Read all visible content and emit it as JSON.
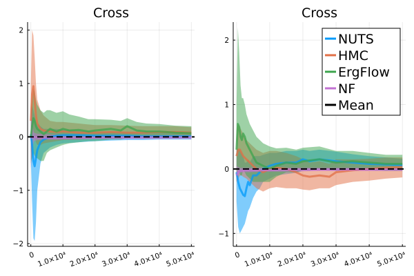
{
  "chart_data": [
    {
      "type": "line",
      "title": "Cross",
      "xlabel": "",
      "ylabel": "",
      "xlim": [
        -1000,
        51000
      ],
      "ylim": [
        -2.05,
        2.15
      ],
      "xticks": [
        {
          "value": 0,
          "label": "0"
        },
        {
          "value": 10000,
          "label": "1.0×10⁴"
        },
        {
          "value": 20000,
          "label": "2.0×10⁴"
        },
        {
          "value": 30000,
          "label": "3.0×10⁴"
        },
        {
          "value": 40000,
          "label": "4.0×10⁴"
        },
        {
          "value": 50000,
          "label": "5.0×10⁴"
        }
      ],
      "yticks": [
        {
          "value": -2,
          "label": "−2"
        },
        {
          "value": -1,
          "label": "−1"
        },
        {
          "value": 0,
          "label": "0"
        },
        {
          "value": 1,
          "label": "1"
        },
        {
          "value": 2,
          "label": "2"
        }
      ],
      "grid": true,
      "mean": 0,
      "series": [
        {
          "name": "NUTS",
          "color": "#009AFA",
          "x": [
            0,
            400,
            800,
            1200,
            1600,
            2000,
            3000,
            4000,
            6000,
            8000,
            10000,
            15000,
            20000,
            25000,
            30000,
            35000,
            40000,
            45000,
            50000
          ],
          "y": [
            0.05,
            -0.15,
            -0.45,
            -0.55,
            -0.4,
            -0.25,
            -0.1,
            -0.05,
            0.0,
            0.02,
            0.03,
            0.03,
            0.02,
            0.02,
            0.02,
            0.01,
            0.01,
            0.01,
            0.01
          ],
          "lower": [
            -0.4,
            -1.2,
            -1.9,
            -1.95,
            -1.6,
            -1.0,
            -0.5,
            -0.3,
            -0.2,
            -0.15,
            -0.12,
            -0.1,
            -0.08,
            -0.07,
            -0.06,
            -0.06,
            -0.05,
            -0.05,
            -0.05
          ],
          "upper": [
            0.4,
            0.6,
            0.5,
            0.4,
            0.3,
            0.25,
            0.2,
            0.15,
            0.15,
            0.15,
            0.14,
            0.12,
            0.1,
            0.1,
            0.09,
            0.08,
            0.08,
            0.08,
            0.07
          ]
        },
        {
          "name": "HMC",
          "color": "#E26F46",
          "x": [
            0,
            400,
            800,
            1200,
            1600,
            2000,
            3000,
            4000,
            6000,
            8000,
            10000,
            15000,
            20000,
            25000,
            30000,
            35000,
            40000,
            45000,
            50000
          ],
          "y": [
            0.3,
            0.8,
            0.95,
            0.7,
            0.4,
            0.25,
            0.15,
            0.12,
            0.1,
            0.09,
            0.1,
            0.08,
            0.08,
            0.09,
            0.08,
            0.08,
            0.09,
            0.09,
            0.08
          ],
          "lower": [
            -0.3,
            -0.2,
            0.1,
            0.0,
            -0.1,
            -0.15,
            -0.15,
            -0.12,
            -0.1,
            -0.08,
            -0.06,
            -0.05,
            -0.03,
            -0.02,
            -0.02,
            -0.01,
            -0.01,
            -0.01,
            0.0
          ],
          "upper": [
            1.0,
            2.0,
            1.9,
            1.5,
            1.0,
            0.7,
            0.5,
            0.4,
            0.3,
            0.28,
            0.28,
            0.25,
            0.22,
            0.22,
            0.21,
            0.2,
            0.2,
            0.2,
            0.18
          ]
        },
        {
          "name": "ErgFlow",
          "color": "#3DA44D",
          "x": [
            0,
            400,
            800,
            1200,
            1600,
            2000,
            3000,
            4000,
            5000,
            6000,
            8000,
            10000,
            12000,
            15000,
            18000,
            20000,
            25000,
            28000,
            30000,
            33000,
            36000,
            40000,
            45000,
            50000
          ],
          "y": [
            0.0,
            0.2,
            0.35,
            0.3,
            0.2,
            0.15,
            0.1,
            0.05,
            0.1,
            0.15,
            0.1,
            0.15,
            0.12,
            0.13,
            0.1,
            0.12,
            0.15,
            0.12,
            0.2,
            0.12,
            0.1,
            0.1,
            0.08,
            0.07
          ],
          "lower": [
            -0.5,
            -0.4,
            -0.3,
            -0.35,
            -0.4,
            -0.4,
            -0.45,
            -0.45,
            -0.3,
            -0.25,
            -0.2,
            -0.15,
            -0.12,
            -0.1,
            -0.08,
            -0.08,
            -0.05,
            -0.05,
            -0.02,
            -0.03,
            -0.03,
            -0.03,
            -0.02,
            -0.02
          ],
          "upper": [
            0.5,
            0.7,
            0.9,
            0.85,
            0.7,
            0.6,
            0.5,
            0.45,
            0.5,
            0.5,
            0.45,
            0.48,
            0.42,
            0.38,
            0.33,
            0.33,
            0.32,
            0.3,
            0.35,
            0.28,
            0.25,
            0.24,
            0.21,
            0.2
          ]
        },
        {
          "name": "NF",
          "color": "#C271D2",
          "x": [
            0,
            500,
            1000,
            2000,
            4000,
            8000,
            15000,
            25000,
            35000,
            50000
          ],
          "y": [
            0.0,
            -0.02,
            0.0,
            -0.01,
            -0.02,
            -0.02,
            -0.02,
            -0.01,
            -0.01,
            -0.01
          ],
          "lower": [
            -0.6,
            -0.2,
            -0.08,
            -0.06,
            -0.05,
            -0.05,
            -0.04,
            -0.04,
            -0.04,
            -0.04
          ],
          "upper": [
            0.6,
            0.2,
            0.08,
            0.06,
            0.05,
            0.04,
            0.03,
            0.03,
            0.03,
            0.03
          ]
        }
      ]
    },
    {
      "type": "line",
      "title": "Cross",
      "xlabel": "",
      "ylabel": "",
      "xlim": [
        -1000,
        51000
      ],
      "ylim": [
        -1.2,
        2.28
      ],
      "xticks": [
        {
          "value": 0,
          "label": "0"
        },
        {
          "value": 10000,
          "label": "1.0×10⁴"
        },
        {
          "value": 20000,
          "label": "2.0×10⁴"
        },
        {
          "value": 30000,
          "label": "3.0×10⁴"
        },
        {
          "value": 40000,
          "label": "4.0×10⁴"
        },
        {
          "value": 50000,
          "label": "5.0×10⁴"
        }
      ],
      "yticks": [
        {
          "value": -1,
          "label": "−1"
        },
        {
          "value": 0,
          "label": "0"
        },
        {
          "value": 1,
          "label": "1"
        },
        {
          "value": 2,
          "label": "2"
        }
      ],
      "grid": true,
      "mean": 0,
      "legend": {
        "placement": "top-right",
        "entries": [
          {
            "name": "NUTS",
            "color": "#009AFA"
          },
          {
            "name": "HMC",
            "color": "#E26F46"
          },
          {
            "name": "ErgFlow",
            "color": "#3DA44D"
          },
          {
            "name": "NF",
            "color": "#C271D2"
          },
          {
            "name": "Mean",
            "color": "#000000"
          }
        ]
      },
      "series": [
        {
          "name": "NUTS",
          "color": "#009AFA",
          "x": [
            0,
            500,
            1000,
            1500,
            2000,
            2500,
            3000,
            3500,
            4000,
            5000,
            6000,
            7000,
            8000,
            10000,
            12000,
            15000,
            18000,
            20000,
            22000,
            25000,
            30000,
            35000,
            40000,
            45000,
            50000
          ],
          "y": [
            -0.05,
            -0.2,
            -0.3,
            -0.35,
            -0.4,
            -0.42,
            -0.3,
            -0.2,
            -0.25,
            -0.1,
            -0.1,
            -0.05,
            0.0,
            0.05,
            0.08,
            0.1,
            0.1,
            0.15,
            0.12,
            0.15,
            0.12,
            0.1,
            0.08,
            0.07,
            0.06
          ],
          "lower": [
            -0.5,
            -0.9,
            -1.0,
            -0.95,
            -0.9,
            -0.85,
            -0.75,
            -0.65,
            -0.6,
            -0.45,
            -0.35,
            -0.3,
            -0.2,
            -0.15,
            -0.1,
            -0.08,
            -0.06,
            -0.03,
            -0.03,
            0.0,
            -0.02,
            -0.02,
            -0.02,
            -0.02,
            -0.02
          ],
          "upper": [
            0.3,
            0.3,
            0.3,
            0.25,
            0.2,
            0.1,
            0.1,
            0.15,
            0.1,
            0.2,
            0.2,
            0.2,
            0.22,
            0.25,
            0.25,
            0.28,
            0.28,
            0.3,
            0.28,
            0.3,
            0.27,
            0.23,
            0.2,
            0.18,
            0.16
          ]
        },
        {
          "name": "HMC",
          "color": "#E26F46",
          "x": [
            0,
            500,
            1000,
            1500,
            2000,
            3000,
            4000,
            5000,
            6000,
            8000,
            10000,
            12000,
            15000,
            18000,
            20000,
            22000,
            25000,
            28000,
            30000,
            35000,
            40000,
            45000,
            50000
          ],
          "y": [
            0.2,
            0.3,
            0.3,
            0.25,
            0.2,
            0.15,
            0.1,
            0.05,
            0.0,
            -0.05,
            0.0,
            0.02,
            0.0,
            -0.05,
            -0.1,
            -0.12,
            -0.1,
            -0.12,
            -0.05,
            -0.02,
            0.0,
            0.02,
            0.03
          ],
          "lower": [
            -0.2,
            -0.15,
            -0.1,
            -0.1,
            -0.12,
            -0.15,
            -0.2,
            -0.25,
            -0.3,
            -0.35,
            -0.3,
            -0.28,
            -0.3,
            -0.3,
            -0.32,
            -0.33,
            -0.3,
            -0.3,
            -0.25,
            -0.2,
            -0.18,
            -0.15,
            -0.13
          ],
          "upper": [
            0.6,
            0.7,
            0.65,
            0.6,
            0.55,
            0.45,
            0.4,
            0.35,
            0.3,
            0.25,
            0.28,
            0.28,
            0.25,
            0.2,
            0.15,
            0.1,
            0.12,
            0.08,
            0.15,
            0.15,
            0.16,
            0.18,
            0.18
          ]
        },
        {
          "name": "ErgFlow",
          "color": "#3DA44D",
          "x": [
            0,
            400,
            800,
            1200,
            1600,
            2000,
            2500,
            3000,
            4000,
            5000,
            6000,
            8000,
            10000,
            12000,
            15000,
            18000,
            20000,
            25000,
            30000,
            35000,
            40000,
            45000,
            50000
          ],
          "y": [
            0.3,
            0.7,
            0.65,
            0.5,
            0.45,
            0.55,
            0.5,
            0.4,
            0.3,
            0.2,
            0.1,
            0.05,
            0.0,
            0.05,
            0.1,
            0.08,
            0.12,
            0.15,
            0.1,
            0.12,
            0.1,
            0.08,
            0.08
          ],
          "lower": [
            -0.2,
            0.0,
            -0.05,
            -0.1,
            -0.1,
            0.0,
            -0.05,
            -0.1,
            -0.15,
            -0.2,
            -0.2,
            -0.2,
            -0.2,
            -0.12,
            -0.05,
            -0.05,
            -0.02,
            0.0,
            -0.03,
            -0.02,
            -0.02,
            -0.03,
            -0.03
          ],
          "upper": [
            1.0,
            2.2,
            1.8,
            1.3,
            1.1,
            1.1,
            1.0,
            0.85,
            0.7,
            0.6,
            0.5,
            0.4,
            0.35,
            0.32,
            0.33,
            0.3,
            0.33,
            0.35,
            0.28,
            0.28,
            0.25,
            0.22,
            0.22
          ]
        },
        {
          "name": "NF",
          "color": "#C271D2",
          "x": [
            0,
            500,
            1000,
            2000,
            4000,
            8000,
            15000,
            25000,
            35000,
            50000
          ],
          "y": [
            -0.1,
            -0.05,
            -0.03,
            -0.02,
            -0.02,
            -0.02,
            -0.01,
            -0.01,
            -0.01,
            -0.01
          ],
          "lower": [
            -0.2,
            -0.1,
            -0.06,
            -0.05,
            -0.05,
            -0.04,
            -0.04,
            -0.03,
            -0.03,
            -0.03
          ],
          "upper": [
            0.05,
            0.03,
            0.02,
            0.02,
            0.02,
            0.02,
            0.02,
            0.02,
            0.02,
            0.02
          ]
        }
      ]
    }
  ]
}
